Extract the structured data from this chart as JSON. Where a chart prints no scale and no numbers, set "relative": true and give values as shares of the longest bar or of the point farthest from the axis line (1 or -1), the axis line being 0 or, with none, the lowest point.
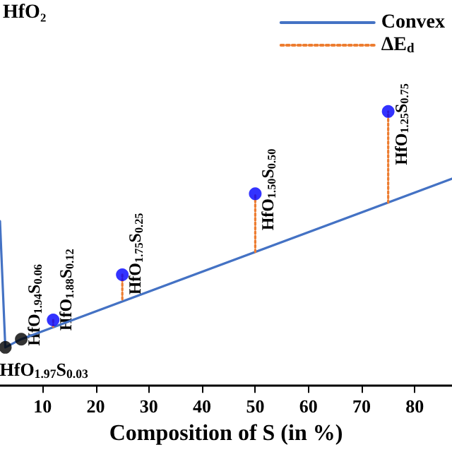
{
  "chart_data": {
    "type": "scatter",
    "xlabel": "Composition of S (in %)",
    "xlim": [
      2,
      87
    ],
    "xticks": [
      10,
      20,
      30,
      40,
      50,
      60,
      70,
      80
    ],
    "relative": true,
    "legend": "top right",
    "grid": false,
    "marker": "circle",
    "annotations": [
      "HfO₂",
      {
        "text": "HfO$_{1.97}$S$_{0.03}$",
        "x": 3,
        "y": 0.14
      },
      {
        "text": "HfO$_{1.94}$S$_{0.06}$",
        "x": 6,
        "y": 0.17
      },
      {
        "text": "HfO$_{1.88}$S$_{0.12}$",
        "x": 12,
        "y": 0.24
      },
      {
        "text": "HfO$_{1.75}$S$_{0.25}$",
        "x": 25,
        "y": 0.405
      },
      {
        "text": "HfO$_{1.50}$S$_{0.50}$",
        "x": 50,
        "y": 0.7
      },
      {
        "text": "HfO$_{1.25}$S$_{0.75}$",
        "x": 75,
        "y": 1
      }
    ],
    "series": [
      {
        "name": "Convex",
        "type": "line",
        "marker": "none",
        "color": "#4472c4",
        "x": [
          2,
          3,
          6,
          87
        ],
        "values": [
          0.6,
          0.14,
          0.17,
          0.755
        ]
      },
      {
        "name": "ΔE$_{d}$",
        "type": "line",
        "marker": "none",
        "line_style": "dotted",
        "color": "#ed7d31",
        "x": [
          12,
          12
        ],
        "values": [
          0.215,
          0.24
        ]
      },
      {
        "type": "line",
        "marker": "none",
        "line_style": "dotted",
        "color": "#ed7d31",
        "x": [
          25,
          25
        ],
        "values": [
          0.315,
          0.405
        ]
      },
      {
        "type": "line",
        "marker": "none",
        "line_style": "dotted",
        "color": "#ed7d31",
        "x": [
          50,
          50
        ],
        "values": [
          0.488,
          0.7
        ]
      },
      {
        "type": "line",
        "marker": "none",
        "line_style": "dotted",
        "color": "#ed7d31",
        "x": [
          75,
          75
        ],
        "values": [
          0.668,
          1
        ]
      },
      {
        "x": [
          3,
          6,
          12,
          25,
          50,
          75
        ],
        "values": [
          0.14,
          0.17,
          0.24,
          0.405,
          0.7,
          1
        ],
        "colors": [
          "#000000",
          "#000000",
          "#0000ff",
          "#0000ff",
          "#0000ff",
          "#0000ff"
        ]
      }
    ]
  }
}
